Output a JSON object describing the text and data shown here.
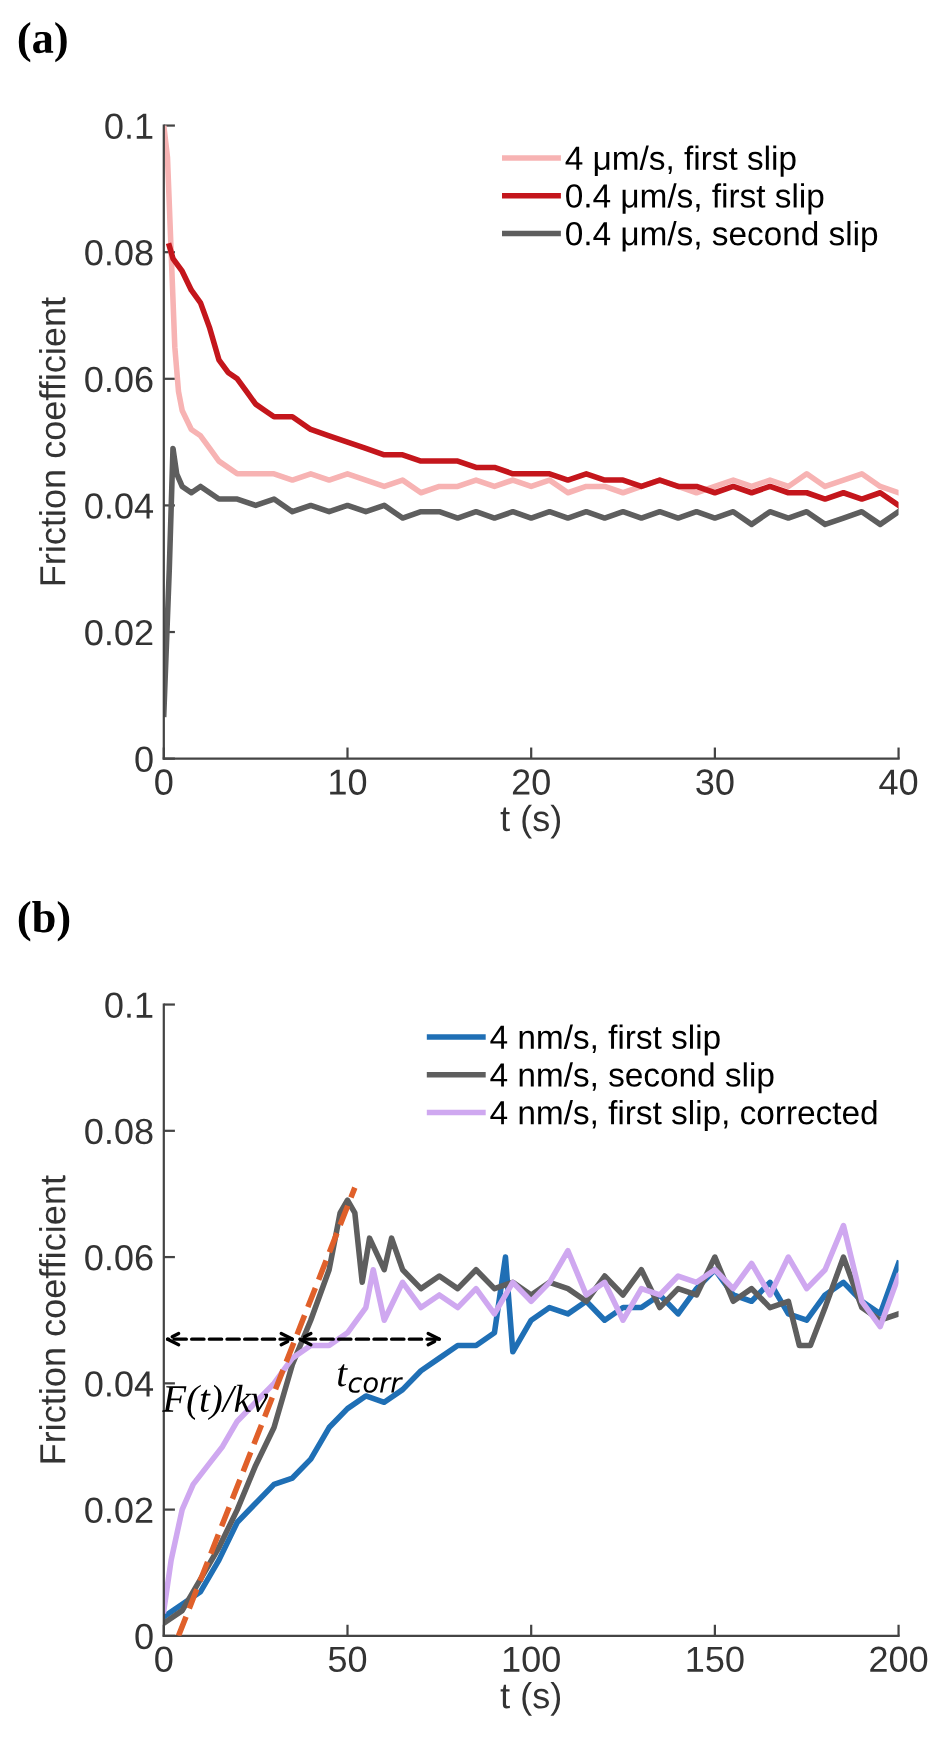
{
  "chart_data": [
    {
      "type": "line",
      "title": "(a)",
      "xlabel": "t (s)",
      "ylabel": "Friction coefficient",
      "xlim": [
        0,
        40
      ],
      "ylim": [
        0,
        0.1
      ],
      "xticks": [
        0,
        10,
        20,
        30,
        40
      ],
      "yticks": [
        0,
        0.02,
        0.04,
        0.06,
        0.08,
        0.1
      ],
      "grid": false,
      "legend": "top right",
      "series": [
        {
          "name": "4 μm/s, first slip",
          "color": "#f7b3b3",
          "x": [
            0,
            0.2,
            0.4,
            0.6,
            0.8,
            1,
            1.5,
            2,
            2.5,
            3,
            4,
            5,
            6,
            7,
            8,
            9,
            10,
            11,
            12,
            13,
            14,
            15,
            16,
            17,
            18,
            19,
            20,
            21,
            22,
            23,
            24,
            25,
            26,
            27,
            28,
            29,
            30,
            31,
            32,
            33,
            34,
            35,
            36,
            37,
            38,
            39,
            40
          ],
          "values": [
            0.1,
            0.095,
            0.08,
            0.065,
            0.058,
            0.055,
            0.052,
            0.051,
            0.049,
            0.047,
            0.045,
            0.045,
            0.045,
            0.044,
            0.045,
            0.044,
            0.045,
            0.044,
            0.043,
            0.044,
            0.042,
            0.043,
            0.043,
            0.044,
            0.043,
            0.044,
            0.043,
            0.044,
            0.042,
            0.043,
            0.043,
            0.042,
            0.043,
            0.044,
            0.043,
            0.042,
            0.043,
            0.044,
            0.043,
            0.044,
            0.043,
            0.045,
            0.043,
            0.044,
            0.045,
            0.043,
            0.042
          ]
        },
        {
          "name": "0.4 μm/s, first slip",
          "color": "#c4161c",
          "x": [
            0.3,
            0.5,
            1,
            1.5,
            2,
            2.5,
            3,
            3.5,
            4,
            4.5,
            5,
            5.5,
            6,
            7,
            8,
            9,
            10,
            11,
            12,
            13,
            14,
            15,
            16,
            17,
            18,
            19,
            20,
            21,
            22,
            23,
            24,
            25,
            26,
            27,
            28,
            29,
            30,
            31,
            32,
            33,
            34,
            35,
            36,
            37,
            38,
            39,
            40
          ],
          "values": [
            0.081,
            0.079,
            0.077,
            0.074,
            0.072,
            0.068,
            0.063,
            0.061,
            0.06,
            0.058,
            0.056,
            0.055,
            0.054,
            0.054,
            0.052,
            0.051,
            0.05,
            0.049,
            0.048,
            0.048,
            0.047,
            0.047,
            0.047,
            0.046,
            0.046,
            0.045,
            0.045,
            0.045,
            0.044,
            0.045,
            0.044,
            0.044,
            0.043,
            0.044,
            0.043,
            0.043,
            0.042,
            0.043,
            0.042,
            0.043,
            0.042,
            0.042,
            0.041,
            0.042,
            0.041,
            0.042,
            0.04
          ]
        },
        {
          "name": "0.4 μm/s, second slip",
          "color": "#5e5e5e",
          "x": [
            0,
            0.3,
            0.5,
            0.7,
            1,
            1.5,
            2,
            2.5,
            3,
            4,
            5,
            6,
            7,
            8,
            9,
            10,
            11,
            12,
            13,
            14,
            15,
            16,
            17,
            18,
            19,
            20,
            21,
            22,
            23,
            24,
            25,
            26,
            27,
            28,
            29,
            30,
            31,
            32,
            33,
            34,
            35,
            36,
            37,
            38,
            39,
            40
          ],
          "values": [
            0.007,
            0.03,
            0.049,
            0.045,
            0.043,
            0.042,
            0.043,
            0.042,
            0.041,
            0.041,
            0.04,
            0.041,
            0.039,
            0.04,
            0.039,
            0.04,
            0.039,
            0.04,
            0.038,
            0.039,
            0.039,
            0.038,
            0.039,
            0.038,
            0.039,
            0.038,
            0.039,
            0.038,
            0.039,
            0.038,
            0.039,
            0.038,
            0.039,
            0.038,
            0.039,
            0.038,
            0.039,
            0.037,
            0.039,
            0.038,
            0.039,
            0.037,
            0.038,
            0.039,
            0.037,
            0.039
          ]
        }
      ]
    },
    {
      "type": "line",
      "title": "(b)",
      "xlabel": "t (s)",
      "ylabel": "Friction coefficient",
      "xlim": [
        0,
        200
      ],
      "ylim": [
        0,
        0.1
      ],
      "xticks": [
        0,
        50,
        100,
        150,
        200
      ],
      "yticks": [
        0,
        0.02,
        0.04,
        0.06,
        0.08,
        0.1
      ],
      "grid": false,
      "legend": "top right",
      "annotations": [
        "F(t)/kv",
        "t$_{corr}$"
      ],
      "series": [
        {
          "name": "4 nm/s, first slip",
          "color": "#1f6fb5",
          "x": [
            0,
            5,
            10,
            15,
            20,
            25,
            30,
            35,
            40,
            45,
            50,
            55,
            60,
            65,
            70,
            75,
            80,
            85,
            90,
            93,
            95,
            100,
            105,
            110,
            115,
            120,
            125,
            130,
            135,
            140,
            145,
            150,
            155,
            160,
            165,
            170,
            175,
            180,
            185,
            190,
            195,
            200
          ],
          "values": [
            0.003,
            0.005,
            0.007,
            0.012,
            0.018,
            0.021,
            0.024,
            0.025,
            0.028,
            0.033,
            0.036,
            0.038,
            0.037,
            0.039,
            0.042,
            0.044,
            0.046,
            0.046,
            0.048,
            0.06,
            0.045,
            0.05,
            0.052,
            0.051,
            0.053,
            0.05,
            0.052,
            0.052,
            0.054,
            0.051,
            0.055,
            0.058,
            0.054,
            0.053,
            0.056,
            0.051,
            0.05,
            0.054,
            0.056,
            0.053,
            0.051,
            0.059
          ]
        },
        {
          "name": "4 nm/s, second slip",
          "color": "#5e5e5e",
          "x": [
            0,
            5,
            10,
            15,
            20,
            25,
            30,
            35,
            40,
            45,
            48,
            50,
            52,
            54,
            56,
            60,
            62,
            65,
            70,
            75,
            80,
            85,
            90,
            95,
            100,
            105,
            110,
            115,
            120,
            125,
            130,
            135,
            140,
            145,
            150,
            155,
            160,
            165,
            170,
            173,
            176,
            180,
            185,
            190,
            195,
            200
          ],
          "values": [
            0.002,
            0.004,
            0.009,
            0.014,
            0.02,
            0.027,
            0.033,
            0.043,
            0.05,
            0.058,
            0.067,
            0.069,
            0.067,
            0.056,
            0.063,
            0.058,
            0.063,
            0.058,
            0.055,
            0.057,
            0.055,
            0.058,
            0.055,
            0.056,
            0.054,
            0.056,
            0.055,
            0.053,
            0.057,
            0.054,
            0.058,
            0.052,
            0.055,
            0.054,
            0.06,
            0.053,
            0.055,
            0.052,
            0.053,
            0.046,
            0.046,
            0.052,
            0.06,
            0.052,
            0.05,
            0.051
          ]
        },
        {
          "name": "4 nm/s, first slip, corrected",
          "color": "#cfa8f0",
          "x": [
            0,
            2,
            5,
            8,
            12,
            16,
            20,
            25,
            30,
            35,
            40,
            45,
            50,
            55,
            57,
            60,
            65,
            70,
            75,
            80,
            85,
            90,
            95,
            100,
            105,
            110,
            115,
            120,
            125,
            130,
            135,
            140,
            145,
            150,
            155,
            160,
            165,
            170,
            175,
            180,
            185,
            190,
            195,
            200
          ],
          "values": [
            0.004,
            0.012,
            0.02,
            0.024,
            0.027,
            0.03,
            0.034,
            0.037,
            0.04,
            0.044,
            0.046,
            0.046,
            0.048,
            0.052,
            0.058,
            0.05,
            0.056,
            0.052,
            0.054,
            0.052,
            0.055,
            0.051,
            0.056,
            0.053,
            0.056,
            0.061,
            0.054,
            0.056,
            0.05,
            0.055,
            0.054,
            0.057,
            0.056,
            0.058,
            0.055,
            0.059,
            0.054,
            0.06,
            0.055,
            0.058,
            0.065,
            0.053,
            0.049,
            0.057
          ]
        },
        {
          "type": "line",
          "color": "#e0602a",
          "line_style": "dashed",
          "x": [
            4,
            52
          ],
          "values": [
            0,
            0.071
          ]
        }
      ]
    }
  ]
}
